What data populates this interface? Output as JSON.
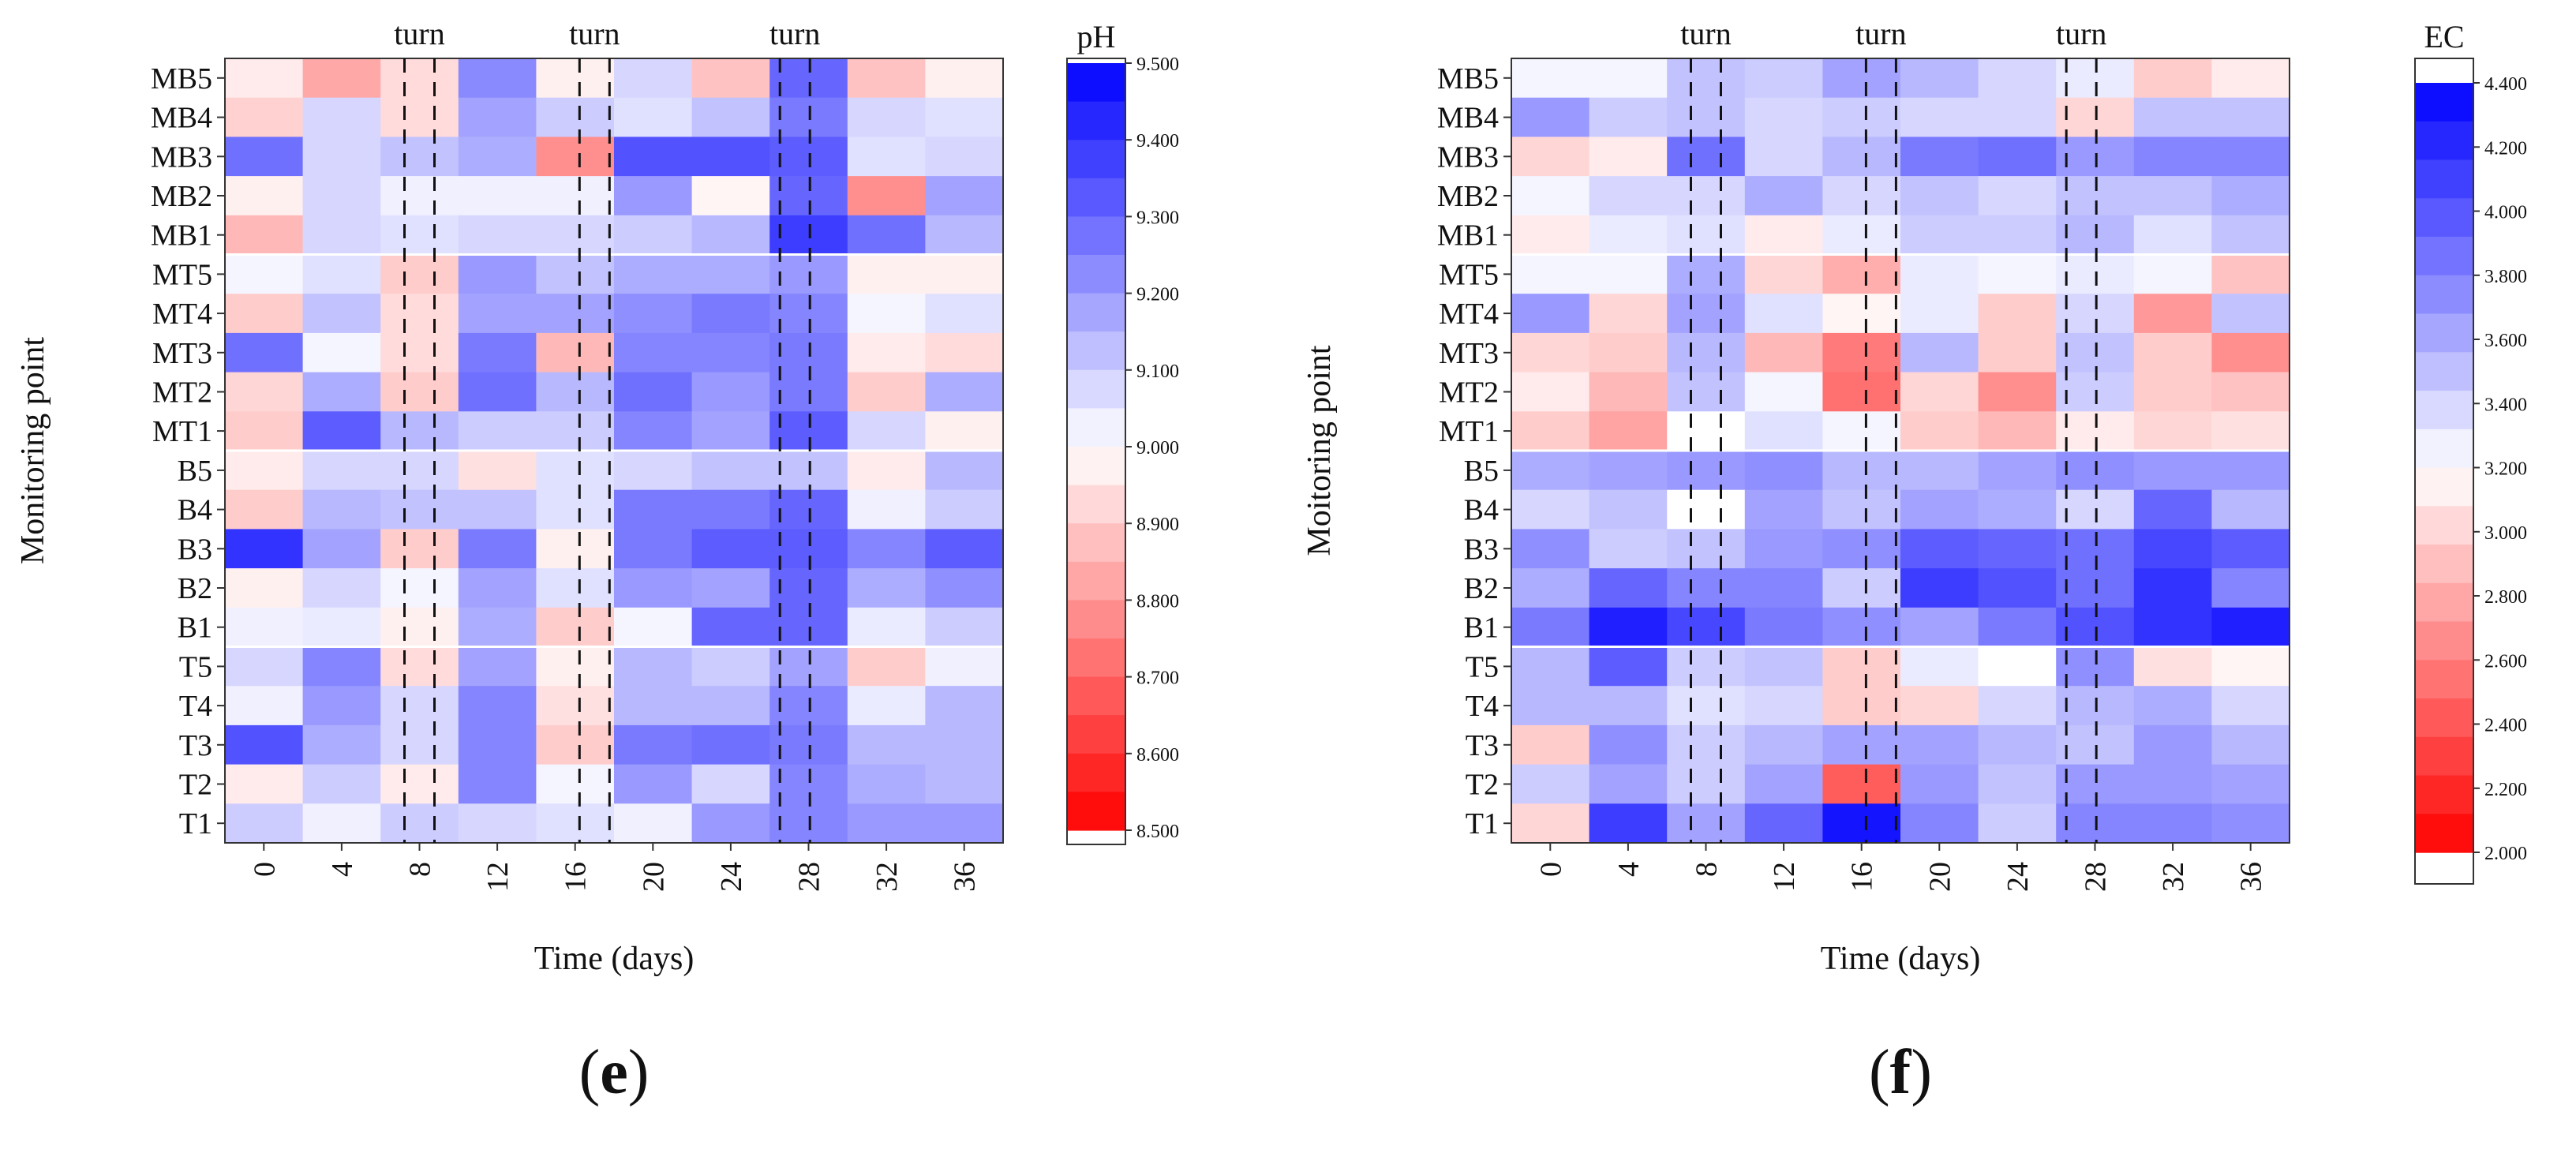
{
  "figure_labels": [
    "e",
    "f"
  ],
  "chart_data": [
    {
      "type": "heatmap",
      "panel": "e",
      "variable": "pH",
      "xlabel": "Time (days)",
      "ylabel": "Monitoring point",
      "x_ticks": [
        "0",
        "4",
        "8",
        "12",
        "16",
        "20",
        "24",
        "28",
        "32",
        "36"
      ],
      "rows": [
        "MB5",
        "MB4",
        "MB3",
        "MB2",
        "MB1",
        "MT5",
        "MT4",
        "MT3",
        "MT2",
        "MT1",
        "B5",
        "B4",
        "B3",
        "B2",
        "B1",
        "T5",
        "T4",
        "T3",
        "T2",
        "T1"
      ],
      "turn_label": "turn",
      "turn_days": [
        8,
        17,
        27.3
      ],
      "colorbar": {
        "title": "pH",
        "range": [
          8.5,
          9.5
        ],
        "ticks": [
          "8.500",
          "8.600",
          "8.700",
          "8.800",
          "8.900",
          "9.000",
          "9.100",
          "9.200",
          "9.300",
          "9.400",
          "9.500"
        ],
        "low_color": "#ff0000",
        "mid_color": "#ffffff",
        "high_color": "#0000ff"
      },
      "values": [
        [
          8.96,
          8.83,
          8.93,
          9.23,
          8.97,
          9.08,
          8.88,
          9.3,
          8.88,
          8.97
        ],
        [
          8.91,
          9.08,
          8.93,
          9.18,
          9.1,
          9.06,
          9.12,
          9.26,
          9.08,
          9.06
        ],
        [
          9.28,
          9.08,
          9.12,
          9.16,
          8.78,
          9.34,
          9.34,
          9.32,
          9.06,
          9.08
        ],
        [
          8.97,
          9.08,
          9.03,
          9.03,
          9.03,
          9.2,
          8.98,
          9.3,
          8.78,
          9.18
        ],
        [
          8.86,
          9.08,
          9.06,
          9.08,
          9.08,
          9.1,
          9.14,
          9.38,
          9.28,
          9.14
        ],
        [
          9.02,
          9.06,
          8.9,
          9.2,
          9.12,
          9.16,
          9.16,
          9.2,
          8.97,
          8.97
        ],
        [
          8.9,
          9.12,
          8.93,
          9.18,
          9.18,
          9.22,
          9.26,
          9.24,
          9.02,
          9.06
        ],
        [
          9.28,
          9.02,
          8.93,
          9.26,
          8.86,
          9.24,
          9.24,
          9.26,
          8.96,
          8.93
        ],
        [
          8.92,
          9.16,
          8.9,
          9.28,
          9.14,
          9.28,
          9.2,
          9.26,
          8.9,
          9.16
        ],
        [
          8.9,
          9.32,
          9.14,
          9.1,
          9.1,
          9.24,
          9.18,
          9.32,
          9.08,
          8.97
        ],
        [
          8.96,
          9.08,
          9.08,
          8.94,
          9.06,
          9.08,
          9.12,
          9.12,
          8.96,
          9.14
        ],
        [
          8.9,
          9.14,
          9.12,
          9.12,
          9.06,
          9.26,
          9.26,
          9.3,
          9.03,
          9.1
        ],
        [
          9.4,
          9.18,
          8.9,
          9.26,
          8.97,
          9.26,
          9.32,
          9.32,
          9.24,
          9.32
        ],
        [
          8.97,
          9.08,
          9.02,
          9.18,
          9.06,
          9.2,
          9.18,
          9.3,
          9.16,
          9.22
        ],
        [
          9.03,
          9.04,
          8.97,
          9.16,
          8.9,
          9.02,
          9.3,
          9.3,
          9.04,
          9.1
        ],
        [
          9.08,
          9.24,
          8.93,
          9.18,
          8.97,
          9.14,
          9.1,
          9.18,
          8.9,
          9.03
        ],
        [
          9.03,
          9.2,
          9.08,
          9.24,
          8.94,
          9.14,
          9.14,
          9.24,
          9.04,
          9.14
        ],
        [
          9.34,
          9.16,
          9.08,
          9.24,
          8.9,
          9.26,
          9.28,
          9.26,
          9.14,
          9.14
        ],
        [
          8.96,
          9.1,
          8.96,
          9.24,
          9.02,
          9.2,
          9.08,
          9.24,
          9.16,
          9.14
        ],
        [
          9.1,
          9.03,
          9.1,
          9.08,
          9.06,
          9.03,
          9.2,
          9.24,
          9.2,
          9.2
        ]
      ]
    },
    {
      "type": "heatmap",
      "panel": "f",
      "variable": "EC",
      "xlabel": "Time (days)",
      "ylabel": "Moitoring point",
      "x_ticks": [
        "0",
        "4",
        "8",
        "12",
        "16",
        "20",
        "24",
        "28",
        "32",
        "36"
      ],
      "rows": [
        "MB5",
        "MB4",
        "MB3",
        "MB2",
        "MB1",
        "MT5",
        "MT4",
        "MT3",
        "MT2",
        "MT1",
        "B5",
        "B4",
        "B3",
        "B2",
        "B1",
        "T5",
        "T4",
        "T3",
        "T2",
        "T1"
      ],
      "turn_label": "turn",
      "turn_days": [
        8,
        17,
        27.3
      ],
      "colorbar": {
        "title": "EC",
        "range": [
          2.0,
          4.5
        ],
        "ticks": [
          "2.000",
          "2.200",
          "2.400",
          "2.600",
          "2.800",
          "3.000",
          "3.200",
          "3.400",
          "3.600",
          "3.800",
          "4.000",
          "4.200",
          "4.400"
        ],
        "low_color": "#ff0000",
        "mid_color": "#ffffff",
        "high_color": "#0000ff"
      },
      "values": [
        [
          3.3,
          3.3,
          3.55,
          3.5,
          3.7,
          3.6,
          3.45,
          3.35,
          3.0,
          3.15
        ],
        [
          3.75,
          3.5,
          3.55,
          3.45,
          3.5,
          3.45,
          3.45,
          3.05,
          3.55,
          3.55
        ],
        [
          3.05,
          3.15,
          3.95,
          3.45,
          3.6,
          3.9,
          3.95,
          3.75,
          3.85,
          3.85
        ],
        [
          3.3,
          3.45,
          3.45,
          3.65,
          3.45,
          3.55,
          3.45,
          3.55,
          3.55,
          3.65
        ],
        [
          3.15,
          3.35,
          3.4,
          3.15,
          3.35,
          3.5,
          3.5,
          3.6,
          3.4,
          3.55
        ],
        [
          3.3,
          3.3,
          3.65,
          3.05,
          2.85,
          3.35,
          3.3,
          3.35,
          3.3,
          2.95
        ],
        [
          3.75,
          3.05,
          3.7,
          3.4,
          3.2,
          3.35,
          3.0,
          3.45,
          2.75,
          3.55
        ],
        [
          3.05,
          3.0,
          3.6,
          2.9,
          2.6,
          3.6,
          3.0,
          3.55,
          3.0,
          2.7
        ],
        [
          3.15,
          2.9,
          3.55,
          3.3,
          2.55,
          3.05,
          2.7,
          3.5,
          3.0,
          2.95
        ],
        [
          3.0,
          2.8,
          3.25,
          3.4,
          3.3,
          3.0,
          2.9,
          3.15,
          3.05,
          3.1
        ],
        [
          3.65,
          3.7,
          3.75,
          3.8,
          3.6,
          3.6,
          3.7,
          3.8,
          3.75,
          3.75
        ],
        [
          3.45,
          3.55,
          3.25,
          3.7,
          3.55,
          3.7,
          3.65,
          3.45,
          4.0,
          3.6
        ],
        [
          3.8,
          3.5,
          3.55,
          3.75,
          3.8,
          4.05,
          4.0,
          3.95,
          4.15,
          4.05
        ],
        [
          3.65,
          4.0,
          3.85,
          3.85,
          3.5,
          4.2,
          4.1,
          3.95,
          4.25,
          3.85
        ],
        [
          3.9,
          4.35,
          4.15,
          3.9,
          3.8,
          3.7,
          3.9,
          4.1,
          4.25,
          4.35
        ],
        [
          3.6,
          4.05,
          3.5,
          3.55,
          3.0,
          3.35,
          3.25,
          3.8,
          3.1,
          3.2
        ],
        [
          3.6,
          3.6,
          3.4,
          3.45,
          3.0,
          3.05,
          3.45,
          3.6,
          3.65,
          3.45
        ],
        [
          3.0,
          3.8,
          3.5,
          3.6,
          3.7,
          3.7,
          3.6,
          3.55,
          3.75,
          3.6
        ],
        [
          3.5,
          3.7,
          3.5,
          3.7,
          2.45,
          3.75,
          3.55,
          3.75,
          3.75,
          3.7
        ],
        [
          3.05,
          4.2,
          3.7,
          4.0,
          4.4,
          3.85,
          3.5,
          3.85,
          3.85,
          3.8
        ]
      ]
    }
  ]
}
